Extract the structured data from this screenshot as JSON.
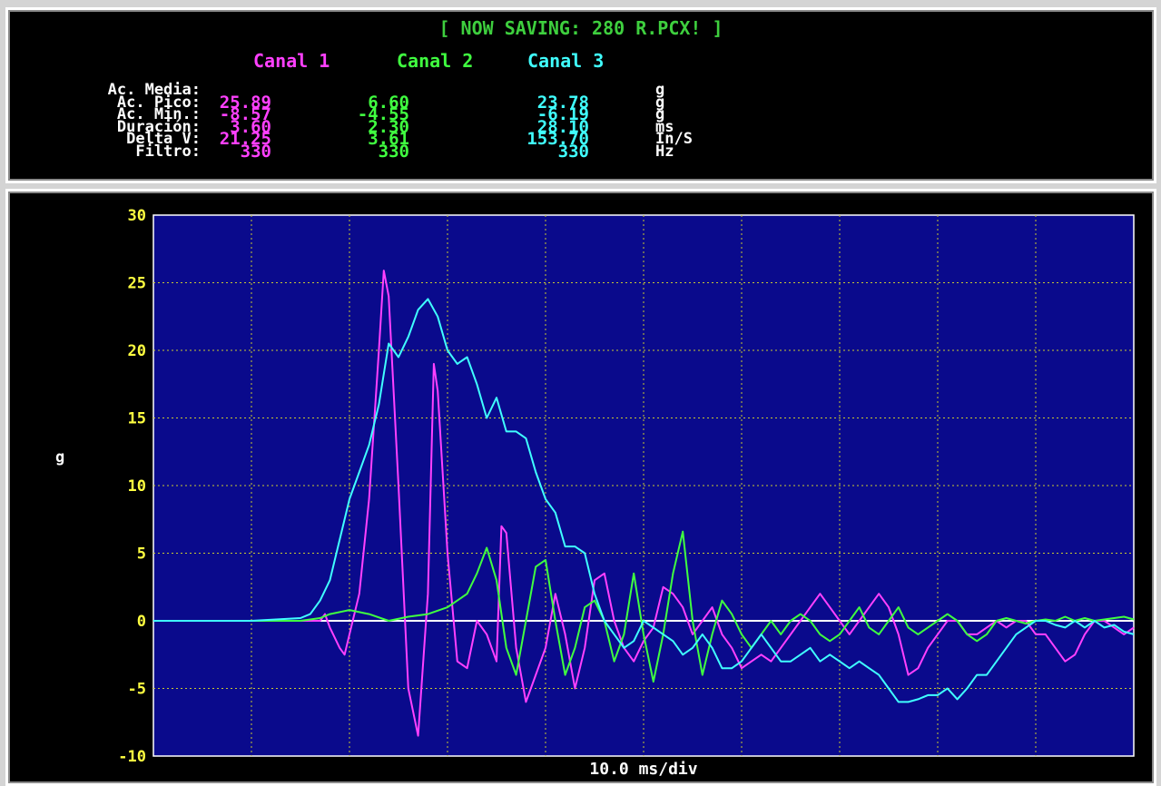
{
  "header": {
    "title": "[ NOW SAVING: 280 R.PCX! ]",
    "channels": [
      "Canal 1",
      "Canal 2",
      "Canal 3"
    ],
    "rows": [
      {
        "label": "Ac. Media:",
        "c1": "",
        "c2": "",
        "c3": "",
        "unit": "g"
      },
      {
        "label": "Ac. Pico:",
        "c1": "25.89",
        "c2": "6.60",
        "c3": "23.78",
        "unit": "g"
      },
      {
        "label": "Ac. Min.:",
        "c1": "-8.57",
        "c2": "-4.55",
        "c3": "-6.19",
        "unit": "g"
      },
      {
        "label": "Duración:",
        "c1": "3.60",
        "c2": "2.30",
        "c3": "28.10",
        "unit": "ms"
      },
      {
        "label": "Delta V:",
        "c1": "21.25",
        "c2": "3.61",
        "c3": "153.70",
        "unit": "In/S"
      },
      {
        "label": "Filtro:",
        "c1": "330",
        "c2": "330",
        "c3": "330",
        "unit": "Hz"
      }
    ]
  },
  "colors": {
    "title": "#3ecf3e",
    "canal1": "#ff40ff",
    "canal2": "#40ff40",
    "canal3": "#40ffff",
    "plot_bg": "#0a0a8c",
    "grid": "#c8c830",
    "tick_label": "#ffff40",
    "zero_line": "#ffffff"
  },
  "chart_data": {
    "type": "line",
    "xlabel": "10.0 ms/div",
    "ylabel": "g",
    "ylim": [
      -10,
      30
    ],
    "yticks": [
      30,
      25,
      20,
      15,
      10,
      5,
      0,
      -5,
      -10
    ],
    "xlim": [
      0,
      100
    ],
    "x_divisions": 10,
    "grid": true,
    "series": [
      {
        "name": "Canal 1",
        "x": [
          0,
          5,
          10,
          15,
          17,
          17.5,
          18,
          19,
          19.5,
          20,
          21,
          22,
          23,
          23.5,
          24,
          25,
          26,
          27,
          28,
          28.6,
          29,
          30,
          31,
          32,
          33,
          34,
          35,
          35.5,
          36,
          37,
          38,
          39,
          40,
          41,
          42,
          43,
          44,
          45,
          46,
          47,
          48,
          49,
          50,
          51,
          52,
          53,
          54,
          55,
          56,
          57,
          58,
          59,
          60,
          61,
          62,
          63,
          64,
          65,
          66,
          67,
          68,
          69,
          70,
          71,
          72,
          73,
          74,
          75,
          76,
          77,
          78,
          79,
          80,
          81,
          82,
          83,
          84,
          85,
          86,
          87,
          88,
          89,
          90,
          91,
          92,
          93,
          94,
          95,
          96,
          97,
          98,
          99,
          100
        ],
        "y": [
          0,
          0,
          0,
          0,
          0,
          0.5,
          -0.5,
          -2,
          -2.5,
          -1,
          2,
          9,
          20,
          25.9,
          24,
          10,
          -5,
          -8.5,
          2,
          19,
          17,
          5,
          -3,
          -3.5,
          0,
          -1,
          -3,
          7,
          6.5,
          -2,
          -6,
          -4,
          -2,
          2,
          -1,
          -5,
          -2,
          3,
          3.5,
          0,
          -2,
          -3,
          -1.5,
          -0.5,
          2.5,
          2,
          1,
          -1,
          0,
          1,
          -1,
          -2,
          -3.5,
          -3,
          -2.5,
          -3,
          -2,
          -1,
          0,
          1,
          2,
          1,
          0,
          -1,
          0,
          1,
          2,
          1,
          -1,
          -4,
          -3.5,
          -2,
          -1,
          0,
          0,
          -1,
          -1,
          -0.5,
          0,
          -0.5,
          0,
          0,
          -1,
          -1,
          -2,
          -3,
          -2.5,
          -1,
          0,
          0,
          -0.5,
          -1,
          -0.5
        ]
      },
      {
        "name": "Canal 2",
        "x": [
          0,
          5,
          10,
          15,
          17,
          18,
          20,
          22,
          24,
          26,
          28,
          30,
          32,
          33,
          34,
          35,
          36,
          37,
          38,
          39,
          40,
          41,
          42,
          43,
          44,
          45,
          46,
          47,
          48,
          49,
          50,
          51,
          52,
          53,
          54,
          55,
          56,
          57,
          58,
          59,
          60,
          61,
          62,
          63,
          64,
          65,
          66,
          67,
          68,
          69,
          70,
          71,
          72,
          73,
          74,
          75,
          76,
          77,
          78,
          79,
          80,
          81,
          82,
          83,
          84,
          85,
          86,
          87,
          88,
          89,
          90,
          91,
          92,
          93,
          94,
          95,
          96,
          97,
          98,
          99,
          100
        ],
        "y": [
          0,
          0,
          0,
          0,
          0.2,
          0.5,
          0.8,
          0.5,
          0,
          0.3,
          0.5,
          1,
          2,
          3.5,
          5.4,
          3,
          -2,
          -4,
          0,
          4,
          4.5,
          0,
          -4,
          -2,
          1,
          1.5,
          0,
          -3,
          -1,
          3.5,
          -1,
          -4.5,
          -1,
          3.5,
          6.6,
          0,
          -4,
          -1,
          1.5,
          0.5,
          -1,
          -2,
          -1,
          0,
          -1,
          0,
          0.5,
          0,
          -1,
          -1.5,
          -1,
          0,
          1,
          -0.5,
          -1,
          0,
          1,
          -0.5,
          -1,
          -0.5,
          0,
          0.5,
          0,
          -1,
          -1.5,
          -1,
          0,
          0.2,
          0,
          -0.2,
          0,
          0.1,
          0,
          0.3,
          0,
          0.2,
          0,
          0.1,
          0.2,
          0.3,
          0.1
        ]
      },
      {
        "name": "Canal 3",
        "x": [
          0,
          5,
          10,
          15,
          16,
          17,
          18,
          19,
          20,
          21,
          22,
          23,
          24,
          25,
          26,
          27,
          28,
          29,
          30,
          31,
          32,
          33,
          34,
          35,
          36,
          37,
          38,
          39,
          40,
          41,
          42,
          43,
          44,
          45,
          46,
          47,
          48,
          49,
          50,
          51,
          52,
          53,
          54,
          55,
          56,
          57,
          58,
          59,
          60,
          61,
          62,
          63,
          64,
          65,
          66,
          67,
          68,
          69,
          70,
          71,
          72,
          73,
          74,
          75,
          76,
          77,
          78,
          79,
          80,
          81,
          82,
          83,
          84,
          85,
          86,
          87,
          88,
          89,
          90,
          91,
          92,
          93,
          94,
          95,
          96,
          97,
          98,
          99,
          100
        ],
        "y": [
          0,
          0,
          0,
          0.2,
          0.5,
          1.5,
          3,
          6,
          9,
          11,
          13,
          16,
          20.5,
          19.5,
          21,
          23,
          23.8,
          22.5,
          20,
          19,
          19.5,
          17.5,
          15,
          16.5,
          14,
          14,
          13.5,
          11,
          9,
          8,
          5.5,
          5.5,
          5,
          2,
          0,
          -1,
          -2,
          -1.5,
          0,
          -0.5,
          -1,
          -1.5,
          -2.5,
          -2,
          -1,
          -2,
          -3.5,
          -3.5,
          -3,
          -2,
          -1,
          -2,
          -3,
          -3,
          -2.5,
          -2,
          -3,
          -2.5,
          -3,
          -3.5,
          -3,
          -3.5,
          -4,
          -5,
          -6,
          -6,
          -5.8,
          -5.5,
          -5.5,
          -5,
          -5.8,
          -5,
          -4,
          -4,
          -3,
          -2,
          -1,
          -0.5,
          0,
          0,
          -0.3,
          -0.5,
          0,
          -0.5,
          0,
          -0.5,
          -0.3,
          -0.8,
          -1
        ]
      }
    ]
  }
}
